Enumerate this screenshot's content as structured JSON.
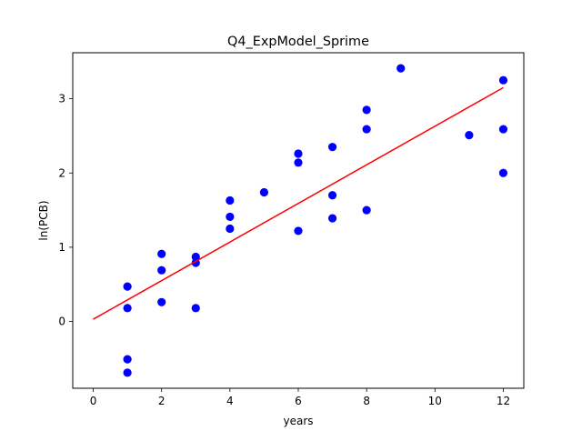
{
  "chart_data": {
    "type": "scatter",
    "title": "Q4_ExpModel_Sprime",
    "xlabel": "years",
    "ylabel": "ln(PCB)",
    "xlim": [
      -0.6,
      12.6
    ],
    "ylim": [
      -0.9,
      3.62
    ],
    "xticks": [
      0,
      2,
      4,
      6,
      8,
      10,
      12
    ],
    "yticks": [
      0,
      1,
      2,
      3
    ],
    "grid": false,
    "series": [
      {
        "kind": "points",
        "color": "#0000ff",
        "points": [
          {
            "x": 1,
            "y": 0.47
          },
          {
            "x": 1,
            "y": 0.18
          },
          {
            "x": 1,
            "y": -0.51
          },
          {
            "x": 1,
            "y": -0.69
          },
          {
            "x": 2,
            "y": 0.91
          },
          {
            "x": 2,
            "y": 0.69
          },
          {
            "x": 2,
            "y": 0.26
          },
          {
            "x": 3,
            "y": 0.87
          },
          {
            "x": 3,
            "y": 0.79
          },
          {
            "x": 3,
            "y": 0.18
          },
          {
            "x": 4,
            "y": 1.63
          },
          {
            "x": 4,
            "y": 1.41
          },
          {
            "x": 4,
            "y": 1.25
          },
          {
            "x": 5,
            "y": 1.74
          },
          {
            "x": 6,
            "y": 2.26
          },
          {
            "x": 6,
            "y": 2.14
          },
          {
            "x": 6,
            "y": 1.22
          },
          {
            "x": 7,
            "y": 2.35
          },
          {
            "x": 7,
            "y": 1.7
          },
          {
            "x": 7,
            "y": 1.39
          },
          {
            "x": 8,
            "y": 2.85
          },
          {
            "x": 8,
            "y": 2.59
          },
          {
            "x": 8,
            "y": 1.5
          },
          {
            "x": 9,
            "y": 3.41
          },
          {
            "x": 11,
            "y": 2.51
          },
          {
            "x": 12,
            "y": 3.25
          },
          {
            "x": 12,
            "y": 2.59
          },
          {
            "x": 12,
            "y": 2.0
          }
        ]
      },
      {
        "kind": "line",
        "color": "#ff0000",
        "points": [
          {
            "x": 0,
            "y": 0.03
          },
          {
            "x": 12,
            "y": 3.15
          }
        ]
      }
    ]
  }
}
